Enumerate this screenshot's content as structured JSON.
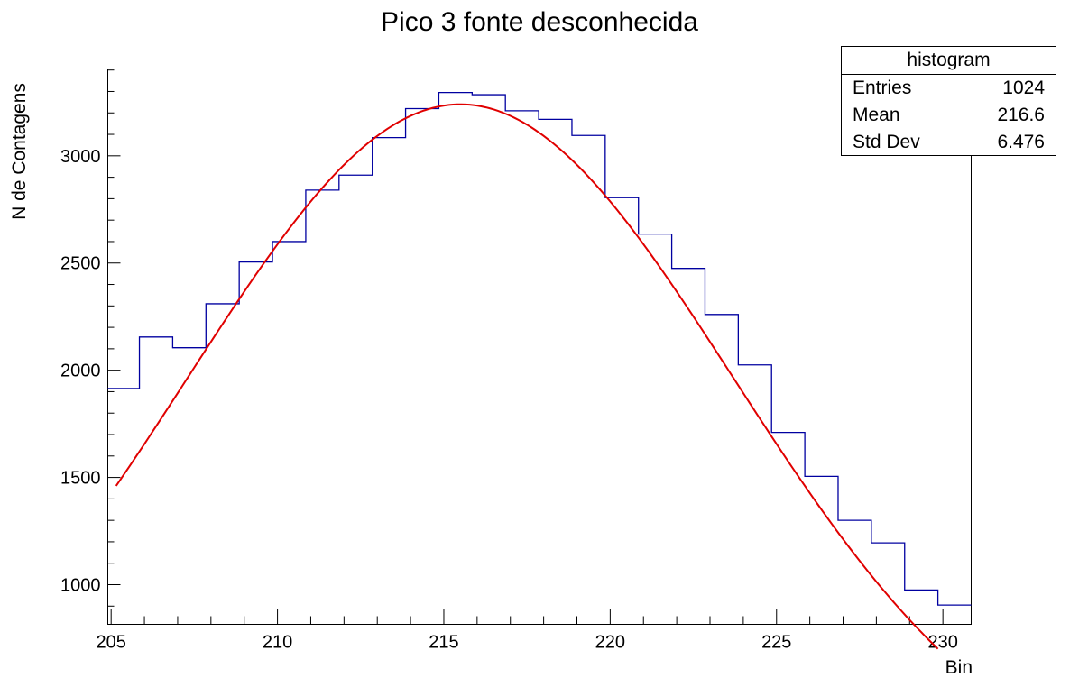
{
  "chart_data": {
    "type": "histogram",
    "title": "Pico 3 fonte desconhecida",
    "xlabel": "Bin",
    "ylabel": "N de Contagens",
    "xlim": [
      204.9,
      230.85
    ],
    "ylim": [
      815,
      3405
    ],
    "x_ticks": [
      205,
      210,
      215,
      220,
      225,
      230
    ],
    "y_ticks": [
      1000,
      1500,
      2000,
      2500,
      3000
    ],
    "bin_edges": [
      204.85,
      205.85,
      206.85,
      207.85,
      208.85,
      209.85,
      210.85,
      211.85,
      212.85,
      213.85,
      214.85,
      215.85,
      216.85,
      217.85,
      218.85,
      219.85,
      220.85,
      221.85,
      222.85,
      223.85,
      224.85,
      225.85,
      226.85,
      227.85,
      228.85,
      229.85,
      230.85
    ],
    "bin_values": [
      1915,
      2155,
      2105,
      2310,
      2505,
      2600,
      2840,
      2910,
      3085,
      3220,
      3295,
      3285,
      3210,
      3170,
      3095,
      2805,
      2635,
      2475,
      2260,
      2025,
      1710,
      1505,
      1300,
      1195,
      975,
      905
    ],
    "series": [
      {
        "kind": "histogram",
        "color": "#0000a0"
      },
      {
        "kind": "fit",
        "color": "#e00000",
        "x_range": [
          205.15,
          229.85
        ],
        "peak_x": 215.5,
        "peak_y": 3240,
        "sigma": 8.2
      }
    ],
    "stats": {
      "header": "histogram",
      "rows": [
        {
          "label": "Entries",
          "value": "1024"
        },
        {
          "label": "Mean",
          "value": "216.6"
        },
        {
          "label": "Std Dev",
          "value": "6.476"
        }
      ]
    }
  }
}
